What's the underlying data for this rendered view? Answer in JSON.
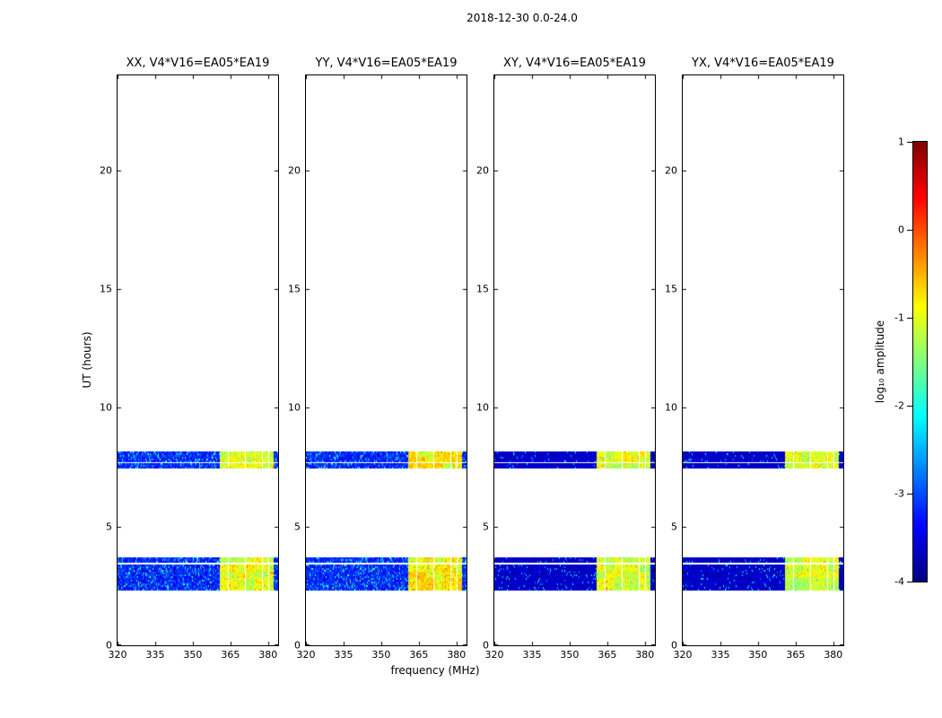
{
  "chart_data": {
    "type": "heatmap",
    "figure_title": "2018-12-30 0.0-24.0",
    "xlabel": "frequency (MHz)",
    "ylabel": "UT (hours)",
    "x_range": [
      320,
      384
    ],
    "y_range": [
      0,
      24
    ],
    "x_ticks": [
      320,
      335,
      350,
      365,
      380
    ],
    "y_ticks": [
      0,
      5,
      10,
      15,
      20
    ],
    "grid": false,
    "colorbar": {
      "label": "log₁₀ amplitude",
      "range": [
        -4,
        1
      ],
      "ticks": [
        1,
        0,
        -1,
        -2,
        -3,
        -4
      ],
      "colormap": "jet"
    },
    "panels": [
      {
        "title": "XX, V4*V16=EA05*EA19",
        "pol": "XX",
        "noise_level": -3.2,
        "noise_spread": 0.55,
        "speckle": 0.1,
        "rfi_level": -1.0,
        "orange": 0.1
      },
      {
        "title": "YY, V4*V16=EA05*EA19",
        "pol": "YY",
        "noise_level": -3.2,
        "noise_spread": 0.55,
        "speckle": 0.1,
        "rfi_level": -0.9,
        "orange": 0.18
      },
      {
        "title": "XY, V4*V16=EA05*EA19",
        "pol": "XY",
        "noise_level": -3.65,
        "noise_spread": 0.3,
        "speckle": 0.05,
        "rfi_level": -1.05,
        "orange": 0.08
      },
      {
        "title": "YX, V4*V16=EA05*EA19",
        "pol": "YX",
        "noise_level": -3.65,
        "noise_spread": 0.3,
        "speckle": 0.05,
        "rfi_level": -1.05,
        "orange": 0.08
      }
    ],
    "scans": [
      {
        "t0": 2.34,
        "t1": 2.8
      },
      {
        "t0": 2.87,
        "t1": 3.1
      },
      {
        "t0": 3.17,
        "t1": 3.4
      },
      {
        "t0": 3.48,
        "t1": 3.7
      },
      {
        "t0": 7.48,
        "t1": 7.67
      },
      {
        "t0": 7.74,
        "t1": 7.9
      },
      {
        "t0": 7.97,
        "t1": 8.16
      }
    ],
    "noise_band": {
      "f0": 320,
      "f1": 360.7
    },
    "tail_band": {
      "f0": 382.5,
      "f1": 384
    },
    "rfi_segments": [
      [
        361.0,
        363.8
      ],
      [
        364.4,
        367.2
      ],
      [
        367.8,
        370.6
      ],
      [
        371.2,
        374.0
      ],
      [
        374.6,
        377.4
      ],
      [
        378.0,
        379.9
      ],
      [
        380.5,
        382.2
      ]
    ]
  }
}
